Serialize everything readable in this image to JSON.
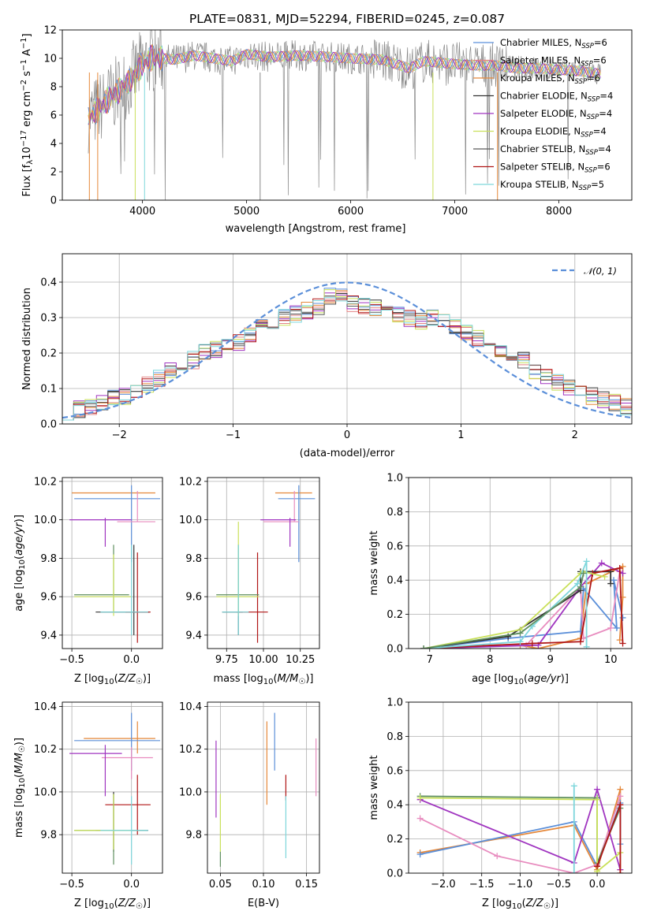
{
  "figure_title": "PLATE=0831, MJD=52294, FIBERID=0245, z=0.087",
  "colors": {
    "blue": "#5b8fd9",
    "orange": "#e5883a",
    "salmon": "#e38585",
    "gray": "#5a5a5a",
    "purple": "#a035c0",
    "lime": "#c9e05a",
    "darkgray": "#333333",
    "darkred": "#b01515",
    "cyan": "#7dd6db",
    "spectrum": "#888888",
    "pink": "#e88cbf",
    "green": "#5f8f5f"
  },
  "chart_data": [
    {
      "id": "spectrum",
      "type": "line",
      "title": "PLATE=0831, MJD=52294, FIBERID=0245, z=0.087",
      "xlabel": "wavelength [Angstrom, rest frame]",
      "ylabel": "Flux [f_λ 10^-17 erg cm^-2 s^-1 A^-1]",
      "xlim": [
        3230,
        8700
      ],
      "ylim": [
        0,
        12
      ],
      "xticks": [
        "4000",
        "5000",
        "6000",
        "7000",
        "8000"
      ],
      "yticks": [
        "0",
        "2",
        "4",
        "6",
        "8",
        "10",
        "12"
      ],
      "legend": [
        "Chabrier MILES, N_SSP=6",
        "Salpeter MILES, N_SSP=6",
        "Kroupa MILES, N_SSP=6",
        "Chabrier ELODIE, N_SSP=4",
        "Salpeter ELODIE, N_SSP=4",
        "Kroupa ELODIE, N_SSP=4",
        "Chabrier STELIB, N_SSP=4",
        "Salpeter STELIB, N_SSP=6",
        "Kroupa STELIB, N_SSP=5"
      ],
      "legend_colors": [
        "blue",
        "salmon",
        "orange",
        "darkgray",
        "purple",
        "lime",
        "gray",
        "darkred",
        "cyan"
      ],
      "legend_placement": "right",
      "data_x": [
        3500,
        3600,
        3700,
        3800,
        3900,
        4000,
        4100,
        4300,
        4500,
        4860,
        5000,
        5200,
        5500,
        5800,
        6000,
        6300,
        6563,
        6700,
        7000,
        7200,
        7400,
        7600,
        7800,
        8000,
        8200,
        8400
      ],
      "data_model": [
        5.9,
        6.6,
        7.3,
        7.9,
        8.6,
        9.6,
        10.1,
        9.9,
        10.2,
        9.8,
        10.3,
        10.1,
        10.2,
        10.1,
        10.0,
        9.9,
        9.3,
        9.8,
        9.6,
        9.5,
        9.5,
        9.3,
        9.3,
        9.2,
        9.1,
        8.9
      ]
    },
    {
      "id": "residuals",
      "type": "histogram",
      "xlabel": "(data-model)/error",
      "ylabel": "Normed distribution",
      "xlim": [
        -2.5,
        2.5
      ],
      "ylim": [
        0,
        0.48
      ],
      "xticks": [
        "−2",
        "−1",
        "0",
        "1",
        "2"
      ],
      "yticks": [
        "0.0",
        "0.1",
        "0.2",
        "0.3",
        "0.4"
      ],
      "legend": [
        "𝒩(0, 1)"
      ],
      "legend_placement": "top-right",
      "bins_x": [
        -2.5,
        -2.4,
        -2.3,
        -2.2,
        -2.1,
        -2.0,
        -1.9,
        -1.8,
        -1.7,
        -1.6,
        -1.5,
        -1.4,
        -1.3,
        -1.2,
        -1.1,
        -1.0,
        -0.9,
        -0.8,
        -0.7,
        -0.6,
        -0.5,
        -0.4,
        -0.3,
        -0.2,
        -0.1,
        0.0,
        0.1,
        0.2,
        0.3,
        0.4,
        0.5,
        0.6,
        0.7,
        0.8,
        0.9,
        1.0,
        1.1,
        1.2,
        1.3,
        1.4,
        1.5,
        1.6,
        1.7,
        1.8,
        1.9,
        2.0,
        2.1,
        2.2,
        2.3,
        2.4
      ],
      "bins_y": [
        0.036,
        0.04,
        0.05,
        0.06,
        0.075,
        0.08,
        0.09,
        0.11,
        0.13,
        0.15,
        0.17,
        0.18,
        0.2,
        0.21,
        0.22,
        0.23,
        0.25,
        0.27,
        0.29,
        0.3,
        0.31,
        0.32,
        0.33,
        0.36,
        0.37,
        0.34,
        0.33,
        0.33,
        0.32,
        0.31,
        0.3,
        0.29,
        0.3,
        0.29,
        0.27,
        0.26,
        0.24,
        0.22,
        0.2,
        0.19,
        0.18,
        0.15,
        0.13,
        0.12,
        0.1,
        0.09,
        0.08,
        0.07,
        0.06,
        0.05
      ]
    },
    {
      "id": "z-age",
      "type": "errorbar",
      "xlabel": "Z [log10(Z/Z☉)]",
      "ylabel": "age [log10(age/yr)]",
      "xlim": [
        -0.58,
        0.26
      ],
      "ylim": [
        9.33,
        10.22
      ],
      "xticks": [
        "−0.5",
        "0.0"
      ],
      "yticks": [
        "9.4",
        "9.6",
        "9.8",
        "10.0",
        "10.2"
      ],
      "points": [
        {
          "c": "orange",
          "x": 0.0,
          "y": 10.14,
          "xe": [
            -0.5,
            0.2
          ],
          "ye": [
            10.14,
            10.14
          ]
        },
        {
          "c": "blue",
          "x": 0.0,
          "y": 10.11,
          "xe": [
            -0.48,
            0.24
          ],
          "ye": [
            9.78,
            10.18
          ]
        },
        {
          "c": "pink",
          "x": 0.05,
          "y": 9.99,
          "xe": [
            -0.12,
            0.2
          ],
          "ye": [
            9.99,
            10.15
          ]
        },
        {
          "c": "purple",
          "x": -0.22,
          "y": 10.0,
          "xe": [
            -0.52,
            0.0
          ],
          "ye": [
            9.86,
            10.01
          ]
        },
        {
          "c": "darkgray",
          "x": 0.02,
          "y": 9.52,
          "xe": [
            -0.3,
            0.15
          ],
          "ye": [
            9.4,
            9.87
          ]
        },
        {
          "c": "darkred",
          "x": 0.05,
          "y": 9.52,
          "xe": [
            -0.05,
            0.16
          ],
          "ye": [
            9.36,
            9.83
          ]
        },
        {
          "c": "green",
          "x": -0.15,
          "y": 9.61,
          "xe": [
            -0.48,
            -0.02
          ],
          "ye": [
            9.52,
            9.87
          ]
        },
        {
          "c": "lime",
          "x": -0.15,
          "y": 9.6,
          "xe": [
            -0.48,
            0.0
          ],
          "ye": [
            9.5,
            9.82
          ]
        },
        {
          "c": "cyan",
          "x": 0.0,
          "y": 9.52,
          "xe": [
            -0.26,
            0.14
          ],
          "ye": [
            9.4,
            9.87
          ]
        }
      ]
    },
    {
      "id": "mass-age",
      "type": "errorbar",
      "xlabel": "mass [log10(M/M☉)]",
      "ylabel": "",
      "xlim": [
        9.62,
        10.38
      ],
      "ylim": [
        9.33,
        10.22
      ],
      "xticks": [
        "9.75",
        "10.00",
        "10.25"
      ],
      "yticks": [
        "9.4",
        "9.6",
        "9.8",
        "10.0",
        "10.2"
      ],
      "points": [
        {
          "c": "orange",
          "x": 10.22,
          "y": 10.14,
          "xe": [
            10.08,
            10.33
          ],
          "ye": [
            10.14,
            10.14
          ]
        },
        {
          "c": "blue",
          "x": 10.24,
          "y": 10.11,
          "xe": [
            10.1,
            10.35
          ],
          "ye": [
            9.78,
            10.18
          ]
        },
        {
          "c": "pink",
          "x": 10.21,
          "y": 9.99,
          "xe": [
            10.0,
            10.24
          ],
          "ye": [
            9.99,
            10.15
          ]
        },
        {
          "c": "purple",
          "x": 10.18,
          "y": 10.0,
          "xe": [
            9.98,
            10.22
          ],
          "ye": [
            9.86,
            10.01
          ]
        },
        {
          "c": "darkgray",
          "x": 9.83,
          "y": 9.52,
          "xe": [
            9.72,
            9.86
          ],
          "ye": [
            9.4,
            9.87
          ]
        },
        {
          "c": "darkred",
          "x": 9.96,
          "y": 9.52,
          "xe": [
            9.82,
            10.03
          ],
          "ye": [
            9.36,
            9.83
          ]
        },
        {
          "c": "green",
          "x": 9.83,
          "y": 9.61,
          "xe": [
            9.68,
            9.97
          ],
          "ye": [
            9.52,
            9.87
          ]
        },
        {
          "c": "lime",
          "x": 9.83,
          "y": 9.6,
          "xe": [
            9.68,
            9.97
          ],
          "ye": [
            9.5,
            9.99
          ]
        },
        {
          "c": "cyan",
          "x": 9.83,
          "y": 9.52,
          "xe": [
            9.72,
            9.9
          ],
          "ye": [
            9.4,
            9.87
          ]
        }
      ]
    },
    {
      "id": "age-weight",
      "type": "line",
      "xlabel": "age [log10(age/yr)]",
      "ylabel": "mass weight",
      "xlim": [
        6.65,
        10.35
      ],
      "ylim": [
        0,
        1
      ],
      "xticks": [
        "7",
        "8",
        "9",
        "10"
      ],
      "yticks": [
        "0.0",
        "0.2",
        "0.4",
        "0.6",
        "0.8",
        "1.0"
      ],
      "series": [
        {
          "c": "orange",
          "x": [
            6.9,
            8.5,
            8.8,
            9.5,
            9.6,
            10.2,
            10.2,
            10.15
          ],
          "y": [
            0.0,
            0.02,
            0.0,
            0.06,
            0.38,
            0.48,
            0.3,
            0.05
          ]
        },
        {
          "c": "blue",
          "x": [
            6.9,
            8.3,
            9.5,
            9.55,
            10.1,
            10.05,
            10.2
          ],
          "y": [
            0.0,
            0.06,
            0.1,
            0.35,
            0.12,
            0.4,
            0.18
          ]
        },
        {
          "c": "pink",
          "x": [
            6.9,
            8.6,
            9.5,
            9.55,
            10.0,
            10.15
          ],
          "y": [
            0.0,
            0.02,
            0.36,
            0.06,
            0.12,
            0.45
          ]
        },
        {
          "c": "purple",
          "x": [
            6.9,
            8.8,
            9.5,
            9.85,
            10.2
          ],
          "y": [
            0.0,
            0.02,
            0.36,
            0.5,
            0.44
          ]
        },
        {
          "c": "darkgray",
          "x": [
            6.9,
            8.3,
            9.5,
            9.5,
            10.0,
            10.0
          ],
          "y": [
            0.0,
            0.07,
            0.34,
            0.45,
            0.45,
            0.38
          ]
        },
        {
          "c": "darkred",
          "x": [
            6.9,
            8.7,
            9.5,
            9.7,
            10.15,
            10.2
          ],
          "y": [
            0.0,
            0.03,
            0.04,
            0.44,
            0.47,
            0.03
          ]
        },
        {
          "c": "lime",
          "x": [
            6.9,
            8.5,
            9.5,
            9.55,
            9.9
          ],
          "y": [
            0.0,
            0.11,
            0.44,
            0.45,
            0.42
          ]
        },
        {
          "c": "cyan",
          "x": [
            6.9,
            8.5,
            8.7,
            9.45,
            9.6,
            9.6
          ],
          "y": [
            0.0,
            0.04,
            0.13,
            0.38,
            0.51,
            0.01
          ]
        },
        {
          "c": "green",
          "x": [
            6.9,
            8.5,
            9.5,
            9.55
          ],
          "y": [
            0.0,
            0.09,
            0.36,
            0.44
          ]
        }
      ]
    },
    {
      "id": "z-mass",
      "type": "errorbar",
      "xlabel": "Z [log10(Z/Z☉)]",
      "ylabel": "mass [log10(M/M☉)]",
      "xlim": [
        -0.58,
        0.26
      ],
      "ylim": [
        9.62,
        10.42
      ],
      "xticks": [
        "−0.5",
        "0.0"
      ],
      "yticks": [
        "9.8",
        "10.0",
        "10.2",
        "10.4"
      ],
      "points": [
        {
          "c": "orange",
          "x": 0.05,
          "y": 10.25,
          "xe": [
            -0.4,
            0.2
          ],
          "ye": [
            10.18,
            10.33
          ]
        },
        {
          "c": "blue",
          "x": 0.0,
          "y": 10.24,
          "xe": [
            -0.48,
            0.24
          ],
          "ye": [
            10.1,
            10.37
          ]
        },
        {
          "c": "pink",
          "x": 0.0,
          "y": 10.16,
          "xe": [
            -0.25,
            0.18
          ],
          "ye": [
            10.06,
            10.21
          ]
        },
        {
          "c": "purple",
          "x": -0.22,
          "y": 10.18,
          "xe": [
            -0.52,
            -0.08
          ],
          "ye": [
            9.98,
            10.22
          ]
        },
        {
          "c": "darkgray",
          "x": -0.15,
          "y": 9.82,
          "xe": [
            -0.3,
            0.14
          ],
          "ye": [
            9.72,
            10.0
          ]
        },
        {
          "c": "darkred",
          "x": 0.05,
          "y": 9.94,
          "xe": [
            -0.22,
            0.16
          ],
          "ye": [
            9.8,
            10.08
          ]
        },
        {
          "c": "green",
          "x": -0.15,
          "y": 9.82,
          "xe": [
            -0.48,
            0.12
          ],
          "ye": [
            9.66,
            9.99
          ]
        },
        {
          "c": "lime",
          "x": -0.15,
          "y": 9.82,
          "xe": [
            -0.48,
            0.0
          ],
          "ye": [
            9.73,
            9.99
          ]
        },
        {
          "c": "cyan",
          "x": 0.0,
          "y": 9.82,
          "xe": [
            -0.26,
            0.14
          ],
          "ye": [
            9.66,
            9.98
          ]
        }
      ]
    },
    {
      "id": "ebv-mass",
      "type": "errorbar",
      "xlabel": "E(B-V)",
      "ylabel": "",
      "xlim": [
        0.035,
        0.165
      ],
      "ylim": [
        9.62,
        10.42
      ],
      "xticks": [
        "0.05",
        "0.10",
        "0.15"
      ],
      "yticks": [
        "9.8",
        "10.0",
        "10.2",
        "10.4"
      ],
      "points": [
        {
          "c": "purple",
          "x": 0.045,
          "y": 10.05,
          "ye": [
            9.88,
            10.24
          ]
        },
        {
          "c": "lime",
          "x": 0.05,
          "y": 9.82,
          "ye": [
            9.72,
            9.99
          ]
        },
        {
          "c": "green",
          "x": 0.05,
          "y": 9.7,
          "ye": [
            9.65,
            9.72
          ]
        },
        {
          "c": "orange",
          "x": 0.104,
          "y": 10.13,
          "ye": [
            9.94,
            10.33
          ]
        },
        {
          "c": "blue",
          "x": 0.113,
          "y": 10.24,
          "ye": [
            10.1,
            10.37
          ]
        },
        {
          "c": "darkred",
          "x": 0.126,
          "y": 10.0,
          "ye": [
            9.96,
            10.08
          ]
        },
        {
          "c": "cyan",
          "x": 0.126,
          "y": 9.82,
          "ye": [
            9.69,
            9.98
          ]
        },
        {
          "c": "pink",
          "x": 0.161,
          "y": 10.1,
          "ye": [
            9.98,
            10.25
          ]
        }
      ]
    },
    {
      "id": "z-weight",
      "type": "line",
      "xlabel": "Z [log10(Z/Z☉)]",
      "ylabel": "mass weight",
      "xlim": [
        -2.45,
        0.45
      ],
      "ylim": [
        0,
        1
      ],
      "xticks": [
        "−2.0",
        "−1.5",
        "−1.0",
        "−0.5",
        "0.0"
      ],
      "yticks": [
        "0.0",
        "0.2",
        "0.4",
        "0.6",
        "0.8",
        "1.0"
      ],
      "series": [
        {
          "c": "orange",
          "x": [
            -2.3,
            -0.3,
            0.0,
            0.3,
            0.3
          ],
          "y": [
            0.12,
            0.28,
            0.02,
            0.49,
            0.02
          ]
        },
        {
          "c": "blue",
          "x": [
            -2.3,
            -0.3,
            0.0,
            0.3,
            0.3
          ],
          "y": [
            0.11,
            0.3,
            0.04,
            0.41,
            0.17
          ]
        },
        {
          "c": "pink",
          "x": [
            -2.3,
            -1.3,
            -0.3,
            0.0,
            0.3
          ],
          "y": [
            0.32,
            0.1,
            0.0,
            0.05,
            0.45
          ]
        },
        {
          "c": "purple",
          "x": [
            -2.3,
            -0.3,
            0.0,
            0.3
          ],
          "y": [
            0.43,
            0.06,
            0.49,
            0.02
          ]
        },
        {
          "c": "green",
          "x": [
            -2.3,
            0.0,
            0.0,
            0.3
          ],
          "y": [
            0.45,
            0.44,
            0.06,
            0.38
          ]
        },
        {
          "c": "lime",
          "x": [
            -2.3,
            0.0,
            0.0,
            0.3
          ],
          "y": [
            0.44,
            0.43,
            0.01,
            0.12
          ]
        },
        {
          "c": "darkred",
          "x": [
            0.0,
            0.3,
            0.3
          ],
          "y": [
            0.04,
            0.4,
            0.0
          ]
        },
        {
          "c": "cyan",
          "x": [
            -0.3,
            -0.3
          ],
          "y": [
            0.51,
            0.0
          ]
        }
      ]
    }
  ]
}
